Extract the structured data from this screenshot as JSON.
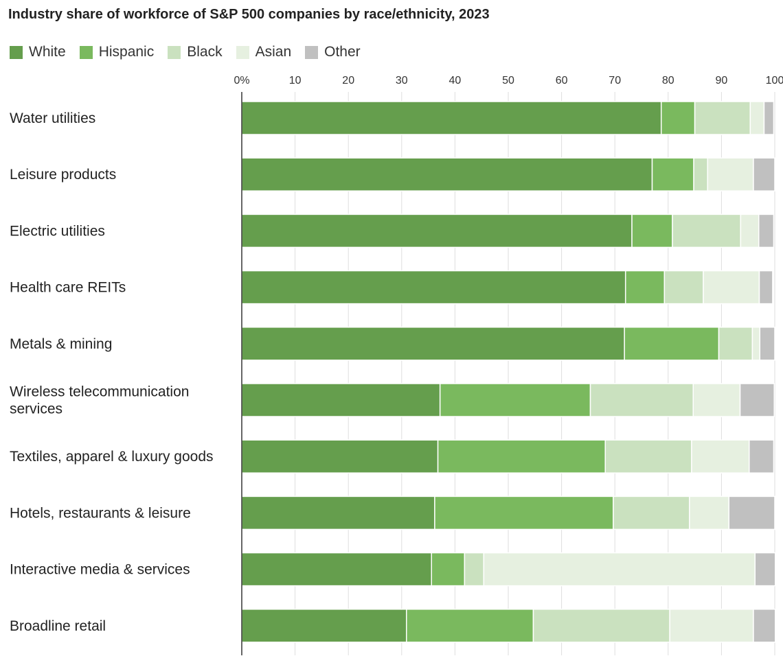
{
  "title": "Industry share of workforce of S&P 500 companies by race/ethnicity, 2023",
  "chart_data": {
    "type": "bar",
    "orientation": "horizontal",
    "stacked": true,
    "title": "Industry share of workforce of S&P 500 companies by race/ethnicity, 2023",
    "xlabel": "",
    "ylabel": "",
    "xlim": [
      0,
      100
    ],
    "x_ticks": [
      "0%",
      "10",
      "20",
      "30",
      "40",
      "50",
      "60",
      "70",
      "80",
      "90",
      "100"
    ],
    "grid": true,
    "legend_position": "top-left",
    "categories": [
      [
        "Water utilities"
      ],
      [
        "Leisure products"
      ],
      [
        "Electric utilities"
      ],
      [
        "Health care REITs"
      ],
      [
        "Metals & mining"
      ],
      [
        "Wireless telecommunication",
        "services"
      ],
      [
        "Textiles, apparel & luxury goods"
      ],
      [
        "Hotels, restaurants & leisure"
      ],
      [
        "Interactive media & services"
      ],
      [
        "Broadline retail"
      ]
    ],
    "series": [
      {
        "name": "White",
        "color": "#659e4d",
        "values": [
          78.7,
          77.0,
          73.2,
          72.0,
          71.8,
          37.2,
          36.8,
          36.2,
          35.6,
          30.9
        ]
      },
      {
        "name": "Hispanic",
        "color": "#7ab95e",
        "values": [
          6.3,
          7.8,
          7.6,
          7.3,
          17.7,
          28.2,
          31.4,
          33.5,
          6.2,
          23.8
        ]
      },
      {
        "name": "Black",
        "color": "#cae1bf",
        "values": [
          10.4,
          2.6,
          12.8,
          7.3,
          6.3,
          19.3,
          16.2,
          14.3,
          3.6,
          25.6
        ]
      },
      {
        "name": "Asian",
        "color": "#e6f0e0",
        "values": [
          2.6,
          8.6,
          3.4,
          10.5,
          1.4,
          8.8,
          10.8,
          7.4,
          50.9,
          15.7
        ]
      },
      {
        "name": "Other",
        "color": "#c0c0c0",
        "values": [
          1.8,
          4.0,
          2.8,
          2.5,
          2.8,
          6.4,
          4.6,
          8.6,
          3.8,
          4.1
        ]
      }
    ]
  }
}
